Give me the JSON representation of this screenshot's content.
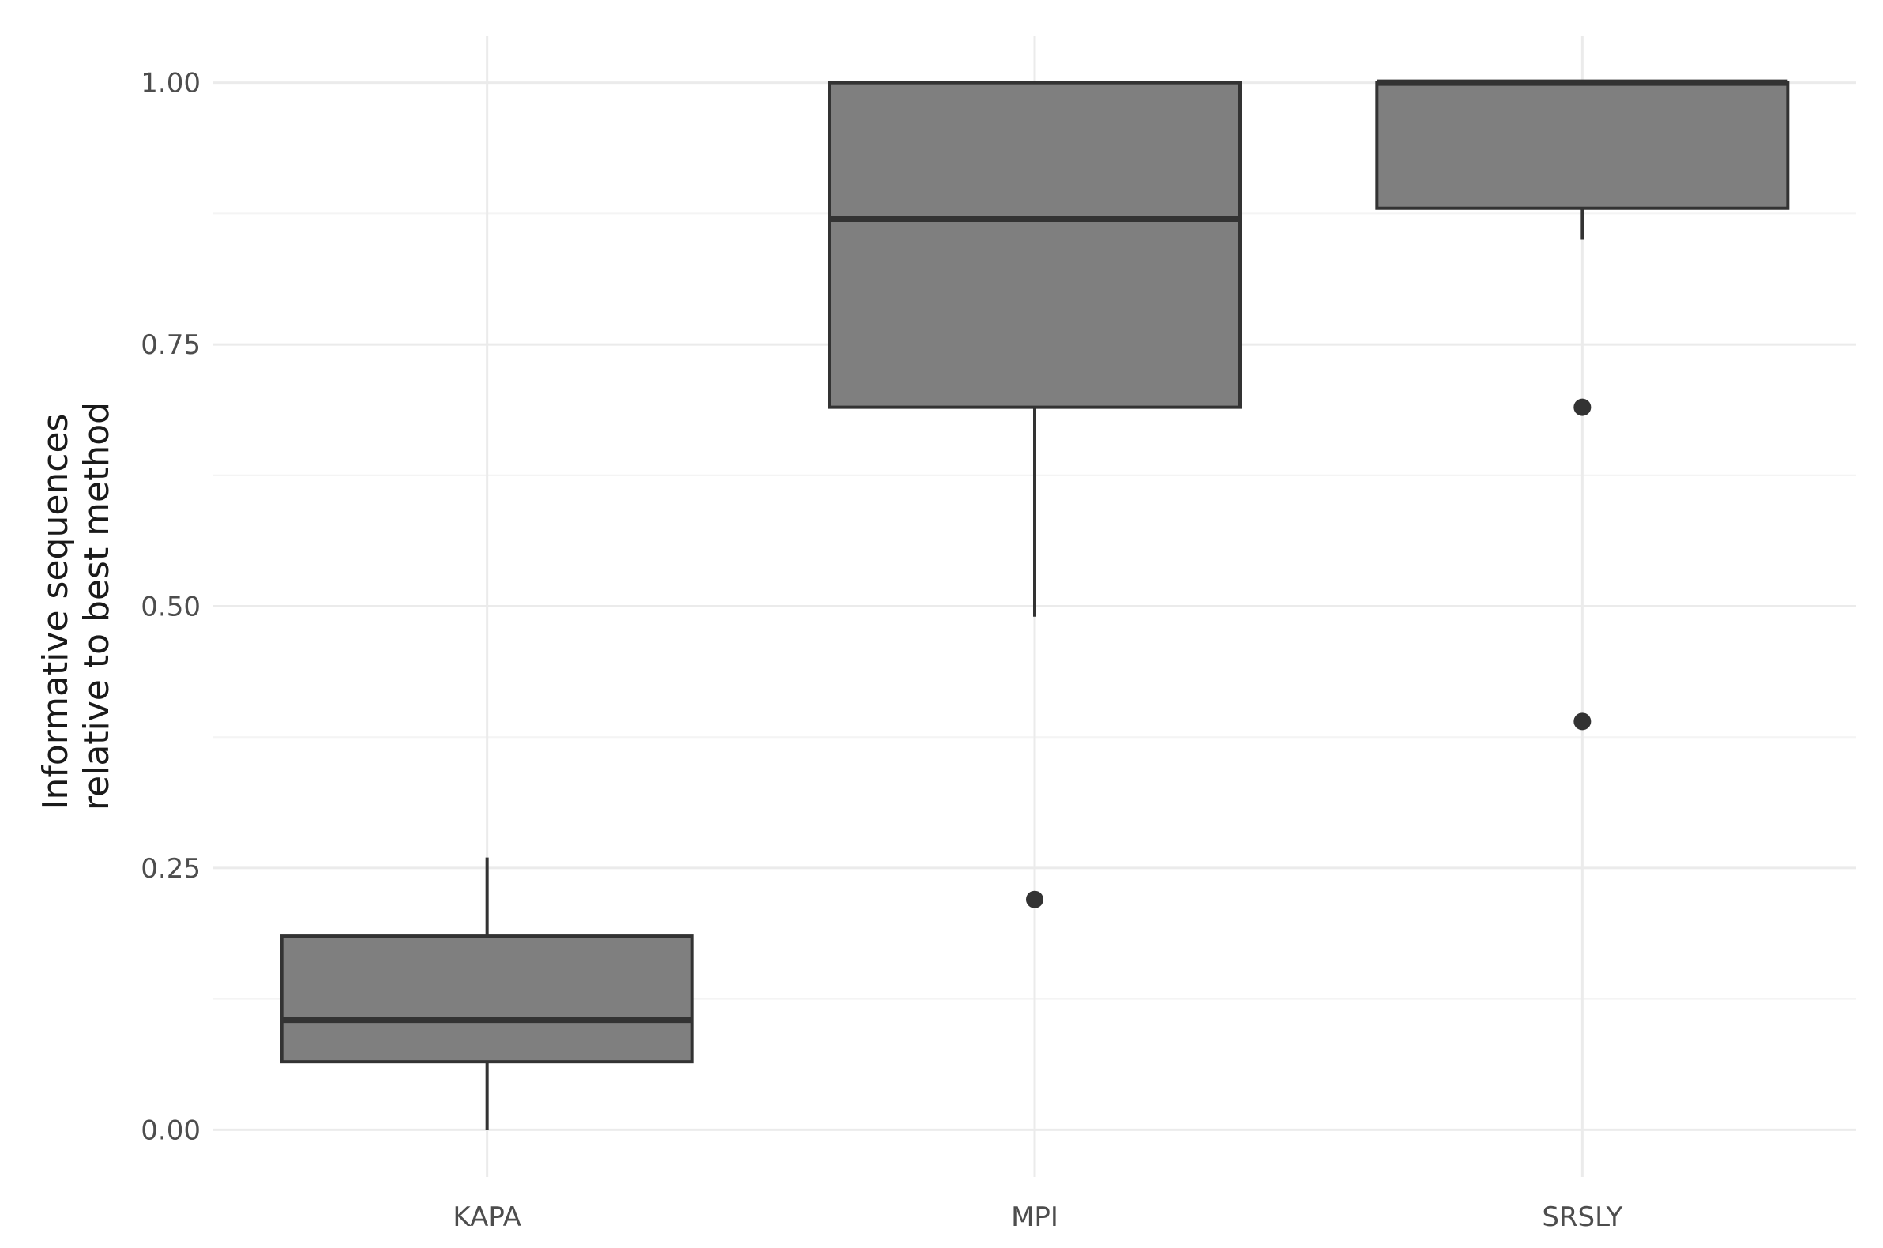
{
  "chart_data": {
    "type": "boxplot",
    "title": "",
    "xlabel": "",
    "ylabel_lines": [
      "Informative sequences",
      "relative to best method"
    ],
    "ylim": [
      -0.045,
      1.045
    ],
    "y_ticks": [
      0,
      0.25,
      0.5,
      0.75,
      1
    ],
    "y_tick_labels": [
      "0.00",
      "0.25",
      "0.50",
      "0.75",
      "1.00"
    ],
    "y_minor_ticks": [
      0.125,
      0.375,
      0.625,
      0.875
    ],
    "grid": true,
    "legend": "none",
    "categories": [
      "KAPA",
      "MPI",
      "SRSLY"
    ],
    "boxes": [
      {
        "category": "KAPA",
        "whisker_low": 0.0,
        "q1": 0.065,
        "median": 0.105,
        "q3": 0.185,
        "whisker_high": 0.26,
        "outliers": []
      },
      {
        "category": "MPI",
        "whisker_low": 0.49,
        "q1": 0.69,
        "median": 0.87,
        "q3": 1.0,
        "whisker_high": 1.0,
        "outliers": [
          0.22
        ]
      },
      {
        "category": "SRSLY",
        "whisker_low": 0.85,
        "q1": 0.88,
        "median": 1.0,
        "q3": 1.0,
        "whisker_high": 1.0,
        "outliers": [
          0.69,
          0.39
        ]
      }
    ],
    "colors": {
      "box_fill": "#7f7f7f",
      "line": "#333333",
      "grid": "#ebebeb"
    }
  }
}
